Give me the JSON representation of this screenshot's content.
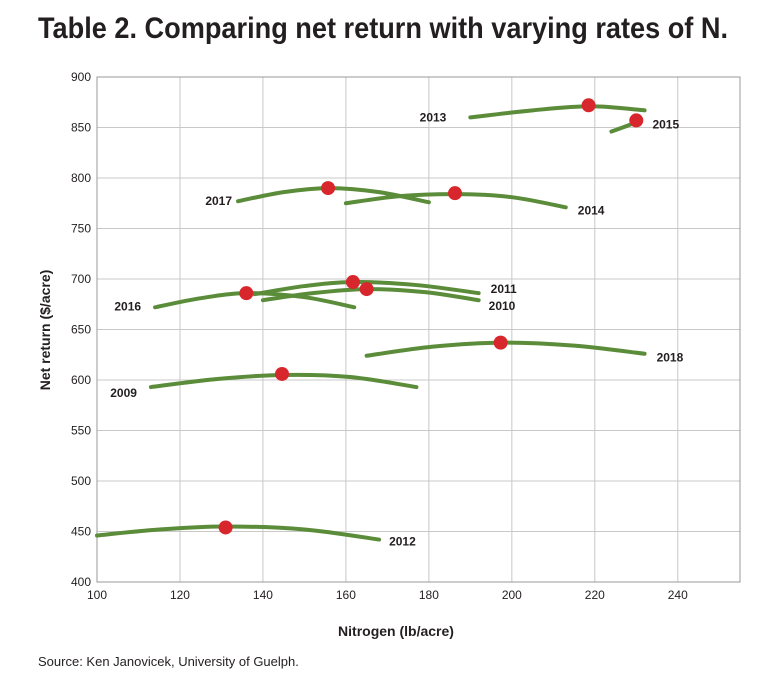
{
  "chart_data": {
    "type": "line",
    "title": "Table 2. Comparing net return with varying rates of N.",
    "x_label": "Nitrogen (lb/acre)",
    "y_label": "Net return ($/acre)",
    "source": "Source: Ken Janovicek, University of Guelph.",
    "xlim": [
      100,
      255
    ],
    "xticks": [
      100,
      120,
      140,
      160,
      180,
      200,
      220,
      240
    ],
    "ylim": [
      400,
      900
    ],
    "yticks": [
      400,
      450,
      500,
      550,
      600,
      650,
      700,
      750,
      800,
      850,
      900
    ],
    "grid": true,
    "optimum_color": "#d7262c",
    "series": [
      {
        "name": "2013",
        "color": "#5b8c3a",
        "x": [
          190,
          205,
          219,
          232
        ],
        "values": [
          860,
          867,
          871,
          867
        ],
        "optimum": {
          "x": 218.5,
          "y": 872
        }
      },
      {
        "name": "2015",
        "color": "#5b8c3a",
        "x": [
          224,
          228,
          231
        ],
        "values": [
          846,
          852,
          857
        ],
        "optimum": {
          "x": 230,
          "y": 857
        }
      },
      {
        "name": "2017",
        "color": "#5b8c3a",
        "x": [
          134,
          145,
          156,
          168,
          180
        ],
        "values": [
          777,
          786,
          790,
          786,
          776
        ],
        "optimum": {
          "x": 155.7,
          "y": 790
        }
      },
      {
        "name": "2014",
        "color": "#5b8c3a",
        "x": [
          160,
          173,
          187,
          200,
          213
        ],
        "values": [
          775,
          782,
          784,
          781,
          771
        ],
        "optimum": {
          "x": 186.3,
          "y": 785
        }
      },
      {
        "name": "2016",
        "color": "#5b8c3a",
        "x": [
          114,
          125,
          136,
          150,
          162
        ],
        "values": [
          672,
          681,
          686,
          682,
          672
        ],
        "optimum": {
          "x": 136,
          "y": 686
        }
      },
      {
        "name": "2011",
        "color": "#5b8c3a",
        "x": [
          138,
          150,
          162,
          177,
          192
        ],
        "values": [
          685,
          693,
          697,
          694,
          686
        ],
        "optimum": {
          "x": 161.7,
          "y": 697
        }
      },
      {
        "name": "2010",
        "color": "#5b8c3a",
        "x": [
          140,
          152,
          165,
          179,
          192
        ],
        "values": [
          679,
          686,
          690,
          687,
          679
        ],
        "optimum": {
          "x": 165,
          "y": 690
        }
      },
      {
        "name": "2018",
        "color": "#5b8c3a",
        "x": [
          165,
          181,
          198,
          215,
          232
        ],
        "values": [
          624,
          633,
          637,
          634,
          626
        ],
        "optimum": {
          "x": 197.3,
          "y": 637
        }
      },
      {
        "name": "2009",
        "color": "#5b8c3a",
        "x": [
          113,
          129,
          145,
          161,
          177
        ],
        "values": [
          593,
          601,
          605,
          603,
          593
        ],
        "optimum": {
          "x": 144.6,
          "y": 606
        }
      },
      {
        "name": "2012",
        "color": "#5b8c3a",
        "x": [
          100,
          115,
          131,
          150,
          168
        ],
        "values": [
          446,
          452,
          455,
          452,
          442
        ],
        "optimum": {
          "x": 131,
          "y": 454
        }
      }
    ]
  }
}
